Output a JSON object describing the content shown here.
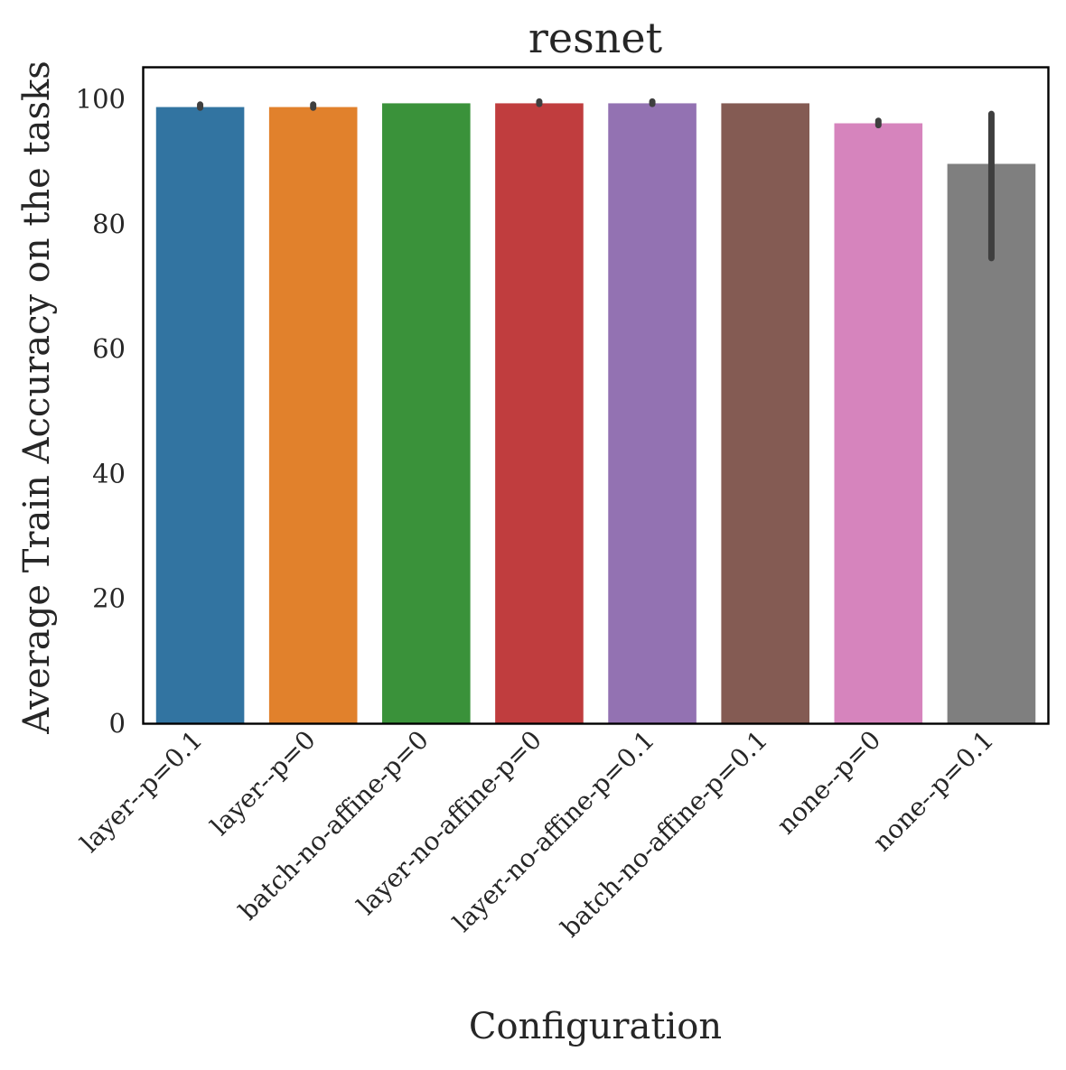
{
  "chart_data": {
    "type": "bar",
    "title": "resnet",
    "xlabel": "Configuration",
    "ylabel": "Average Train Accuracy on the tasks",
    "ylim": [
      0,
      105
    ],
    "yticks": [
      0,
      20,
      40,
      60,
      80,
      100
    ],
    "grid": false,
    "legend": "none",
    "categories": [
      "layer--p=0.1",
      "layer--p=0",
      "batch-no-affine-p=0",
      "layer-no-affine-p=0",
      "layer-no-affine-p=0.1",
      "batch-no-affine-p=0.1",
      "none--p=0",
      "none--p=0.1"
    ],
    "values": [
      98.7,
      98.7,
      99.3,
      99.3,
      99.3,
      99.3,
      96.1,
      89.6
    ],
    "error_low": [
      98.6,
      98.6,
      99.3,
      99.2,
      99.2,
      99.3,
      95.8,
      74.5
    ],
    "error_high": [
      99.1,
      99.1,
      99.3,
      99.6,
      99.6,
      99.3,
      96.5,
      97.6
    ],
    "colors": [
      "#3274a1",
      "#e1812c",
      "#3a923a",
      "#c03d3e",
      "#9372b2",
      "#845b53",
      "#d684bd",
      "#7f7f7f"
    ],
    "error_color": "#3f3f3f"
  }
}
